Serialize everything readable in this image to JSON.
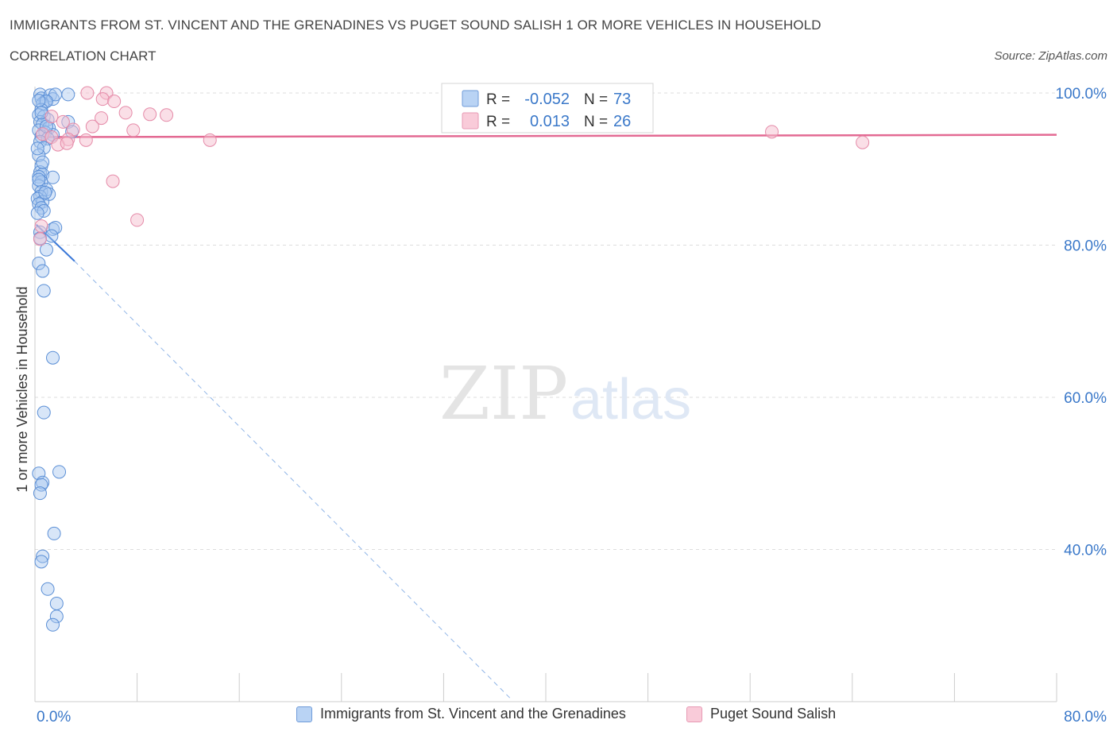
{
  "title": "IMMIGRANTS FROM ST. VINCENT AND THE GRENADINES VS PUGET SOUND SALISH 1 OR MORE VEHICLES IN HOUSEHOLD",
  "subtitle": "CORRELATION CHART",
  "source": "Source: ZipAtlas.com",
  "watermark": {
    "zip": "ZIP",
    "atlas": "atlas"
  },
  "stats": [
    {
      "r_label": "R =",
      "r_value": "-0.052",
      "n_label": "N =",
      "n_value": "73"
    },
    {
      "r_label": "R =",
      "r_value": "0.013",
      "n_label": "N =",
      "n_value": "26"
    }
  ],
  "legend": [
    {
      "label": "Immigrants from St. Vincent and the Grenadines"
    },
    {
      "label": "Puget Sound Salish"
    }
  ],
  "colors": {
    "blue_fill": "#a9c8f0",
    "blue_stroke": "#5b8fd6",
    "blue_line": "#3a78d8",
    "pink_fill": "#f6bfd0",
    "pink_stroke": "#e58aa8",
    "pink_line": "#e36a93",
    "axis_text": "#3a78c9",
    "grid": "#dddddd"
  },
  "chart_data": {
    "type": "scatter",
    "ylabel": "1 or more Vehicles in Household",
    "xlim": [
      0,
      80
    ],
    "ylim": [
      20,
      100
    ],
    "x_tick_labels": [
      "0.0%",
      "80.0%"
    ],
    "y_ticks": [
      40,
      60,
      80,
      100
    ],
    "y_tick_labels": [
      "40.0%",
      "60.0%",
      "80.0%",
      "100.0%"
    ],
    "grid": "horizontal dashed",
    "series": [
      {
        "name": "Immigrants from St. Vincent and the Grenadines",
        "color": "blue",
        "points": [
          [
            0.4,
            99.8
          ],
          [
            0.5,
            99.3
          ],
          [
            0.8,
            98.9
          ],
          [
            1.2,
            99.7
          ],
          [
            1.4,
            99.2
          ],
          [
            1.6,
            99.8
          ],
          [
            2.6,
            99.8
          ],
          [
            0.6,
            98.6
          ],
          [
            0.9,
            98.9
          ],
          [
            0.5,
            97.8
          ],
          [
            0.3,
            97.1
          ],
          [
            0.7,
            96.9
          ],
          [
            1.0,
            96.5
          ],
          [
            0.4,
            96.2
          ],
          [
            0.6,
            95.9
          ],
          [
            1.1,
            95.4
          ],
          [
            0.3,
            95.1
          ],
          [
            0.8,
            94.8
          ],
          [
            1.4,
            94.5
          ],
          [
            2.6,
            96.2
          ],
          [
            2.9,
            94.9
          ],
          [
            0.5,
            94.3
          ],
          [
            1.0,
            94.0
          ],
          [
            0.4,
            93.6
          ],
          [
            0.7,
            92.8
          ],
          [
            0.3,
            91.8
          ],
          [
            0.5,
            90.4
          ],
          [
            0.4,
            89.6
          ],
          [
            0.6,
            89.3
          ],
          [
            0.3,
            89.0
          ],
          [
            1.4,
            88.9
          ],
          [
            0.5,
            88.3
          ],
          [
            0.3,
            87.8
          ],
          [
            0.9,
            87.3
          ],
          [
            0.5,
            87.0
          ],
          [
            1.1,
            86.7
          ],
          [
            0.4,
            86.4
          ],
          [
            0.2,
            86.1
          ],
          [
            0.6,
            85.7
          ],
          [
            0.3,
            85.4
          ],
          [
            0.5,
            84.9
          ],
          [
            0.7,
            84.5
          ],
          [
            0.2,
            84.2
          ],
          [
            1.4,
            82.1
          ],
          [
            1.6,
            82.3
          ],
          [
            0.4,
            81.7
          ],
          [
            1.3,
            81.2
          ],
          [
            0.4,
            80.9
          ],
          [
            0.9,
            79.4
          ],
          [
            0.3,
            77.6
          ],
          [
            0.6,
            76.6
          ],
          [
            0.7,
            74.0
          ],
          [
            1.4,
            65.2
          ],
          [
            0.7,
            58.0
          ],
          [
            0.3,
            50.0
          ],
          [
            1.9,
            50.2
          ],
          [
            0.6,
            48.8
          ],
          [
            0.5,
            48.5
          ],
          [
            0.4,
            47.4
          ],
          [
            1.5,
            42.1
          ],
          [
            0.6,
            39.1
          ],
          [
            0.5,
            38.4
          ],
          [
            1.0,
            34.8
          ],
          [
            1.7,
            32.9
          ],
          [
            1.7,
            31.2
          ],
          [
            1.4,
            30.1
          ],
          [
            0.3,
            99.0
          ],
          [
            0.5,
            97.4
          ],
          [
            0.9,
            95.6
          ],
          [
            0.2,
            92.7
          ],
          [
            0.6,
            90.9
          ],
          [
            0.3,
            88.6
          ],
          [
            0.8,
            86.9
          ]
        ],
        "trend": {
          "x": [
            0.1,
            3.1
          ],
          "y": [
            82.7,
            77.9
          ]
        },
        "trend_extension": {
          "x": [
            3.1,
            37.3
          ],
          "y": [
            77.9,
            20.3
          ]
        }
      },
      {
        "name": "Puget Sound Salish",
        "color": "pink",
        "points": [
          [
            4.1,
            100.0
          ],
          [
            5.6,
            100.0
          ],
          [
            5.3,
            99.2
          ],
          [
            6.2,
            98.9
          ],
          [
            7.1,
            97.4
          ],
          [
            9.0,
            97.2
          ],
          [
            10.3,
            97.1
          ],
          [
            5.2,
            96.7
          ],
          [
            1.3,
            96.9
          ],
          [
            2.2,
            96.2
          ],
          [
            4.5,
            95.6
          ],
          [
            3.0,
            95.2
          ],
          [
            7.7,
            95.1
          ],
          [
            0.6,
            94.6
          ],
          [
            1.3,
            94.2
          ],
          [
            2.6,
            93.9
          ],
          [
            4.0,
            93.8
          ],
          [
            13.7,
            93.8
          ],
          [
            1.8,
            93.2
          ],
          [
            2.5,
            93.4
          ],
          [
            57.7,
            94.9
          ],
          [
            64.8,
            93.5
          ],
          [
            6.1,
            88.4
          ],
          [
            8.0,
            83.3
          ],
          [
            0.5,
            82.5
          ],
          [
            0.4,
            80.8
          ]
        ],
        "trend": {
          "x": [
            0.0,
            80.0
          ],
          "y": [
            94.2,
            94.5
          ]
        }
      }
    ]
  }
}
